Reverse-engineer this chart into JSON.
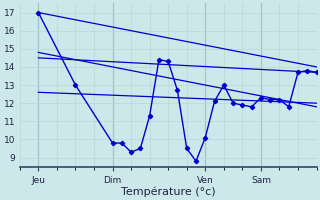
{
  "background_color": "#cce8ea",
  "grid_color": "#aacccc",
  "line_color": "#0000cc",
  "xlabel": "Température (°c)",
  "xlabel_fontsize": 8,
  "yticks": [
    9,
    10,
    11,
    12,
    13,
    14,
    15,
    16,
    17
  ],
  "ylim": [
    8.5,
    17.5
  ],
  "xlim": [
    0,
    16
  ],
  "day_positions": [
    1,
    5,
    10,
    13
  ],
  "day_labels": [
    "Jeu",
    "Dim",
    "Ven",
    "Sam"
  ],
  "vline_positions": [
    1,
    5,
    10,
    13
  ],
  "trend_high": {
    "x": [
      1,
      16
    ],
    "y": [
      17.0,
      14.0
    ]
  },
  "trend_low": {
    "x": [
      1,
      16
    ],
    "y": [
      14.8,
      11.8
    ]
  },
  "trend_mid_high": {
    "x": [
      1,
      16
    ],
    "y": [
      14.5,
      13.7
    ]
  },
  "trend_mid_low": {
    "x": [
      1,
      16
    ],
    "y": [
      12.6,
      12.0
    ]
  },
  "main_line": {
    "x": [
      1,
      3,
      5,
      5.5,
      6,
      6.5,
      7,
      7.5,
      8,
      8.5,
      9,
      9.5,
      10,
      10.5,
      11,
      11.5,
      12,
      12.5,
      13,
      13.5,
      14,
      14.5,
      15,
      15.5,
      16
    ],
    "y": [
      17.0,
      13.0,
      9.8,
      9.8,
      9.3,
      9.5,
      11.3,
      14.4,
      14.3,
      12.7,
      9.5,
      8.8,
      10.1,
      12.1,
      13.0,
      12.0,
      11.9,
      11.8,
      12.3,
      12.2,
      12.2,
      11.8,
      13.7,
      13.8,
      13.7
    ]
  },
  "figsize": [
    3.2,
    2.0
  ],
  "dpi": 100
}
